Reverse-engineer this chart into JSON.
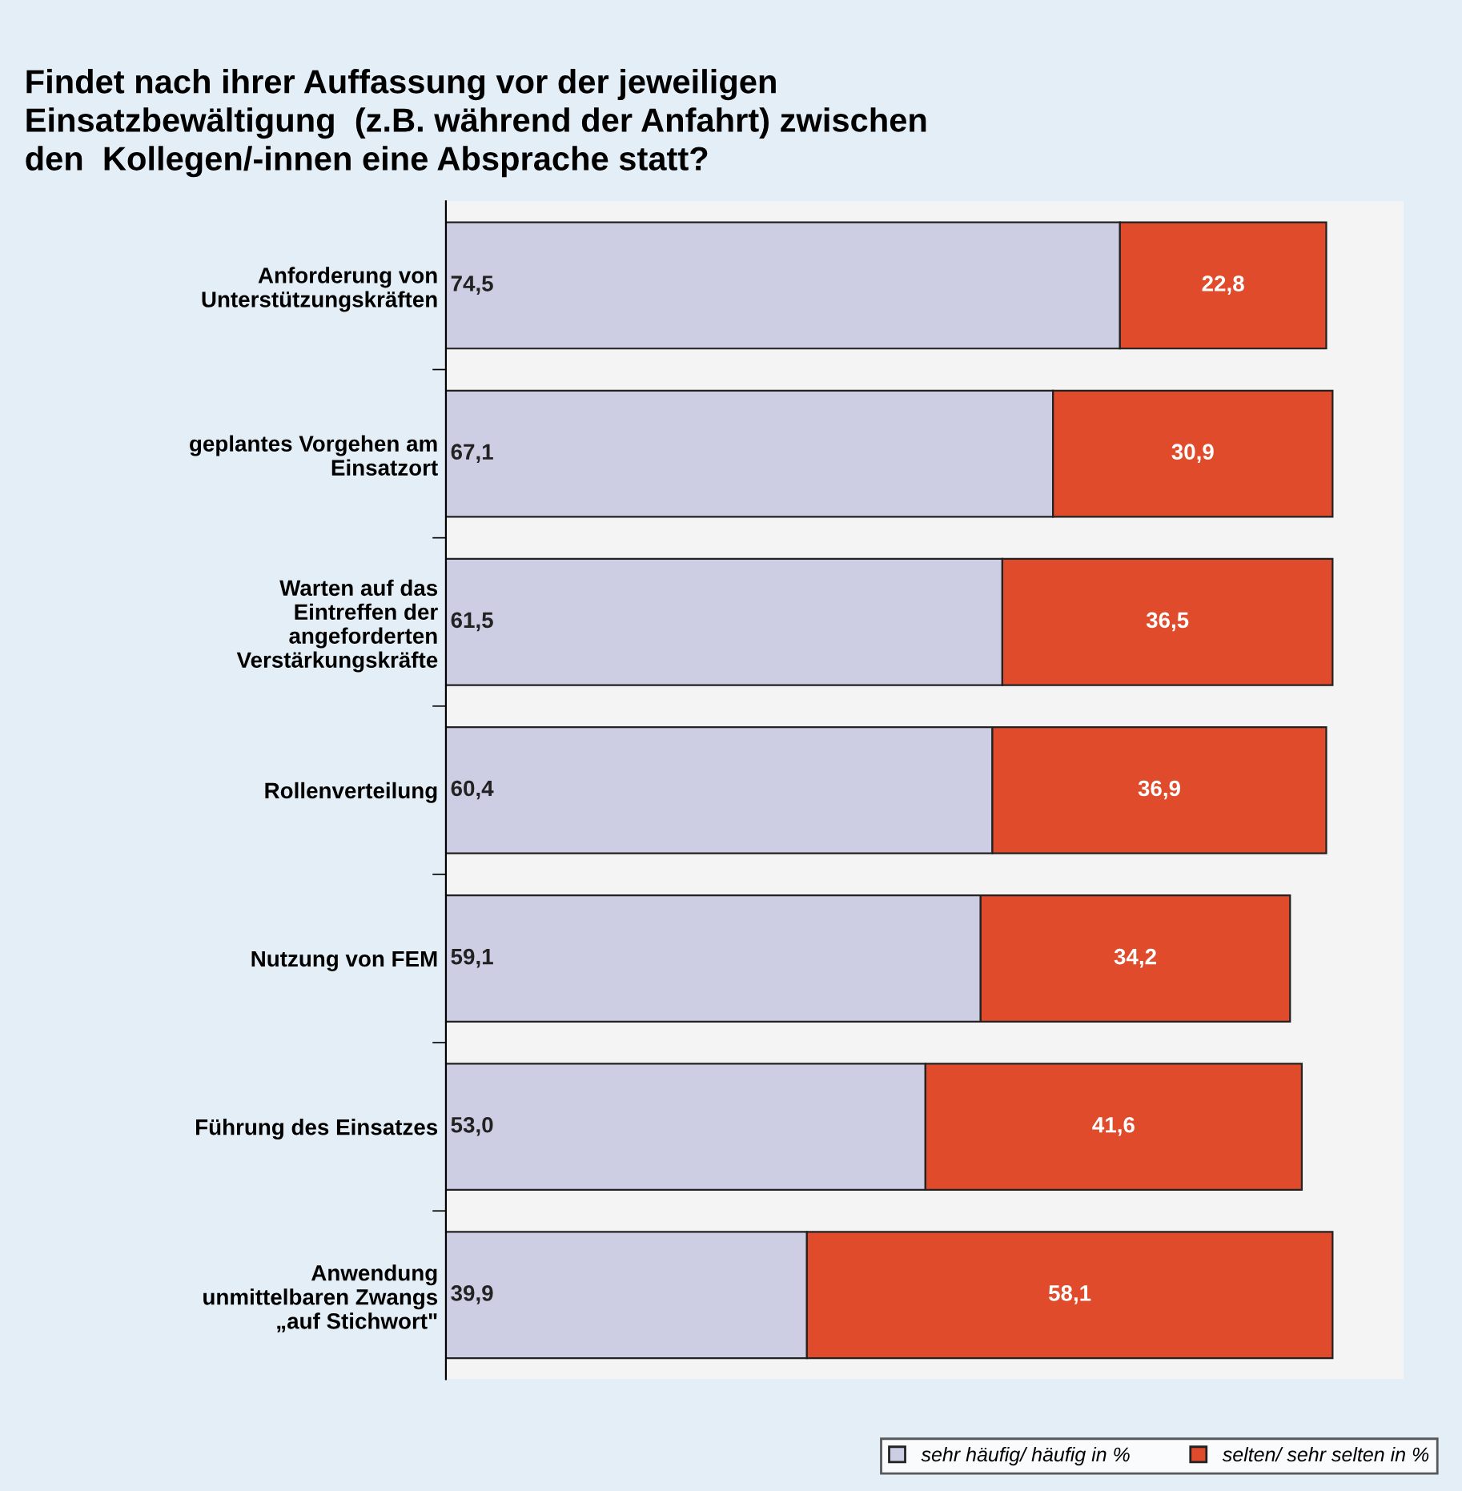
{
  "chart_data": {
    "type": "bar",
    "orientation": "horizontal",
    "stacked": true,
    "title": "Findet nach ihrer Auffassung vor der jeweiligen\nEinsatzbewältigung  (z.B. während der Anfahrt) zwischen\nden  Kollegen/-innen eine Absprache statt?",
    "categories": [
      "Anforderung von\nUnterstützungskräften",
      "geplantes Vorgehen am\nEinsatzort",
      "Warten auf das\nEintreffen der\nangeforderten\nVerstärkungskräfte",
      "Rollenverteilung",
      "Nutzung von FEM",
      "Führung des Einsatzes",
      "Anwendung\nunmittelbaren Zwangs\n„auf Stichwort\""
    ],
    "series": [
      {
        "name": "sehr häufig/ häufig in %",
        "color": "#cdcde3",
        "values": [
          74.5,
          67.1,
          61.5,
          60.4,
          59.1,
          53.0,
          39.9
        ],
        "value_labels": [
          "74,5",
          "67,1",
          "61,5",
          "60,4",
          "59,1",
          "53,0",
          "39,9"
        ]
      },
      {
        "name": "selten/ sehr selten in %",
        "color": "#e04b2b",
        "values": [
          22.8,
          30.9,
          36.5,
          36.9,
          34.2,
          41.6,
          58.1
        ],
        "value_labels": [
          "22,8",
          "30,9",
          "36,5",
          "36,9",
          "34,2",
          "41,6",
          "58,1"
        ]
      }
    ],
    "legend": "bottom right",
    "grid": false
  }
}
